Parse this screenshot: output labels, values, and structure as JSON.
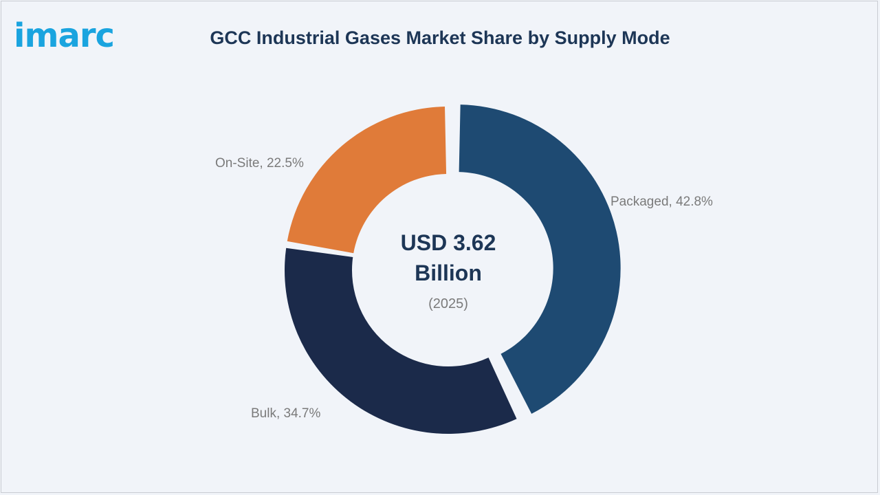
{
  "brand": {
    "logo_text": "imarc",
    "logo_color": "#1aa4df"
  },
  "colors": {
    "title": "#1d3656",
    "label": "#7a7a7a",
    "center_main": "#1d3656",
    "center_sub": "#7a7a7a",
    "background": "#f1f4f9"
  },
  "chart_data": {
    "type": "pie",
    "variant": "donut",
    "title": "GCC Industrial Gases Market Share by Supply Mode",
    "unit": "%",
    "center_text": {
      "main": [
        "USD 3.62",
        "Billion"
      ],
      "sub": "(2025)"
    },
    "slices": [
      {
        "name": "Packaged",
        "value": 42.8,
        "label": "Packaged, 42.8%",
        "color": "#1e4a72",
        "exploded": true
      },
      {
        "name": "Bulk",
        "value": 34.7,
        "label": "Bulk, 34.7%",
        "color": "#1b2a4a",
        "exploded": false
      },
      {
        "name": "On-Site",
        "value": 22.5,
        "label": "On-Site, 22.5%",
        "color": "#e07b39",
        "exploded": false
      }
    ]
  }
}
